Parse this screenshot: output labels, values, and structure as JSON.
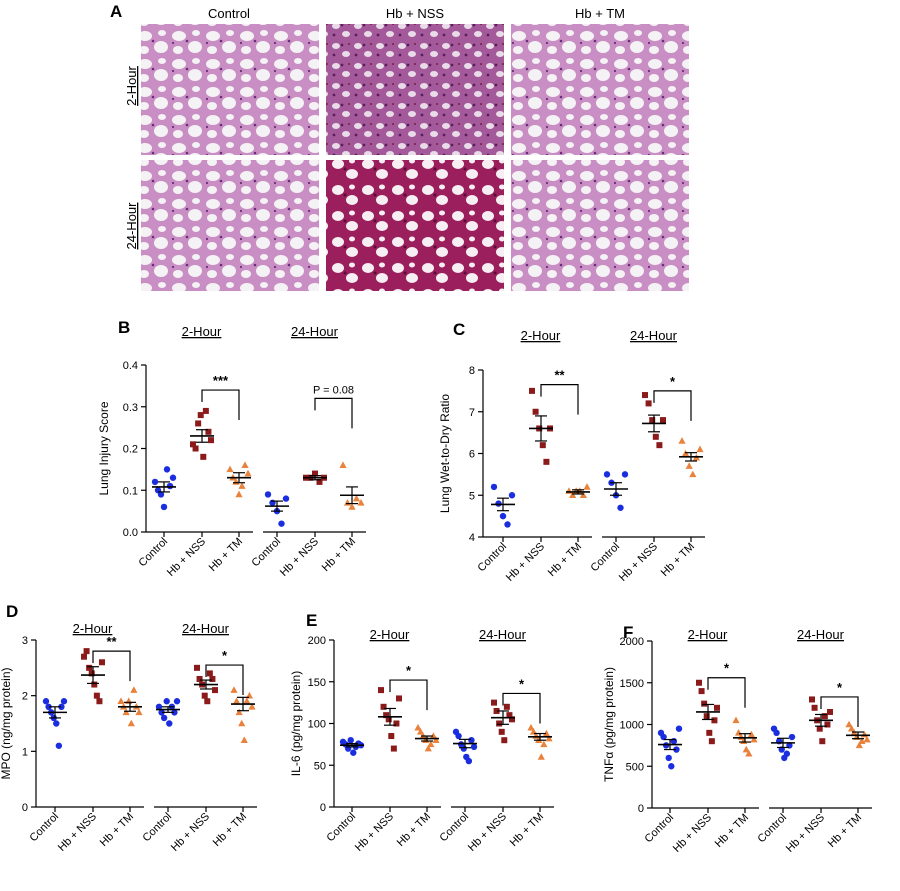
{
  "colors": {
    "control": "#1a2ee0",
    "nss": "#8b1a1a",
    "tm": "#e8823c",
    "tissue_light": "#c98fc4",
    "tissue_dark": "#8a2a6a",
    "tissue_hemorrhage": "#9a1f5c",
    "background_slide": "#f4f2f4"
  },
  "histology": {
    "panel_label": "A",
    "columns": [
      "Control",
      "Hb + NSS",
      "Hb + TM"
    ],
    "rows": [
      "2-Hour",
      "24-Hour"
    ]
  },
  "chart_data": [
    {
      "id": "B",
      "panel_label": "B",
      "type": "scatter",
      "ylabel": "Lung  Injury Score",
      "ylim": [
        0,
        0.4
      ],
      "yticks": [
        "0.0",
        "0.1",
        "0.2",
        "0.3",
        "0.4"
      ],
      "ytick_values": [
        0,
        0.1,
        0.2,
        0.3,
        0.4
      ],
      "groups": [
        {
          "label": "2-Hour",
          "categories": [
            "Control",
            "Hb + NSS",
            "Hb + TM"
          ],
          "points": [
            [
              0.12,
              0.1,
              0.09,
              0.06,
              0.15,
              0.11,
              0.13
            ],
            [
              0.21,
              0.2,
              0.26,
              0.28,
              0.18,
              0.29,
              0.24,
              0.22
            ],
            [
              0.15,
              0.13,
              0.12,
              0.09,
              0.11,
              0.16,
              0.14
            ]
          ],
          "means": [
            0.108,
            0.23,
            0.13
          ],
          "sems": [
            0.012,
            0.015,
            0.012
          ],
          "annotation": {
            "text": "***",
            "from": 1,
            "to": 2,
            "y": 0.34
          }
        },
        {
          "label": "24-Hour",
          "categories": [
            "Control",
            "Hb + NSS",
            "Hb + TM"
          ],
          "points": [
            [
              0.09,
              0.07,
              0.05,
              0.02,
              0.08
            ],
            [
              0.13,
              0.13,
              0.14,
              0.12,
              0.13
            ],
            [
              0.16,
              0.07,
              0.06,
              0.08,
              0.07
            ]
          ],
          "means": [
            0.062,
            0.13,
            0.088
          ],
          "sems": [
            0.012,
            0.005,
            0.02
          ],
          "annotation": {
            "text": "P = 0.08",
            "from": 1,
            "to": 2,
            "y": 0.32
          }
        }
      ]
    },
    {
      "id": "C",
      "panel_label": "C",
      "type": "scatter",
      "ylabel": "Lung Wet-to-Dry  Ratio",
      "ylim": [
        4,
        8
      ],
      "yticks": [
        "4",
        "5",
        "6",
        "7",
        "8"
      ],
      "ytick_values": [
        4,
        5,
        6,
        7,
        8
      ],
      "groups": [
        {
          "label": "2-Hour",
          "categories": [
            "Control",
            "Hb + NSS",
            "Hb + TM"
          ],
          "points": [
            [
              5.2,
              4.8,
              4.5,
              4.3,
              5.0
            ],
            [
              7.5,
              7.0,
              6.6,
              6.2,
              5.8,
              6.6
            ],
            [
              5.1,
              5.0,
              5.1,
              5.1,
              5.0,
              5.2
            ]
          ],
          "means": [
            4.78,
            6.6,
            5.08
          ],
          "sems": [
            0.15,
            0.3,
            0.05
          ],
          "annotation": {
            "text": "**",
            "from": 1,
            "to": 2,
            "y": 7.65
          }
        },
        {
          "label": "24-Hour",
          "categories": [
            "Control",
            "Hb + NSS",
            "Hb + TM"
          ],
          "points": [
            [
              5.5,
              5.3,
              5.0,
              4.7,
              5.5
            ],
            [
              7.4,
              7.2,
              6.8,
              6.4,
              6.2,
              6.8
            ],
            [
              6.3,
              6.0,
              5.7,
              5.5,
              5.9,
              6.1
            ]
          ],
          "means": [
            5.15,
            6.72,
            5.92
          ],
          "sems": [
            0.15,
            0.2,
            0.1
          ],
          "annotation": {
            "text": "*",
            "from": 1,
            "to": 2,
            "y": 7.5
          }
        }
      ]
    },
    {
      "id": "D",
      "panel_label": "D",
      "type": "scatter",
      "ylabel": "MPO (ng/mg protein)",
      "ylim": [
        0,
        3
      ],
      "yticks": [
        "0",
        "1",
        "2",
        "3"
      ],
      "ytick_values": [
        0,
        1,
        2,
        3
      ],
      "groups": [
        {
          "label": "2-Hour",
          "categories": [
            "Control",
            "Hb + NSS",
            "Hb + TM"
          ],
          "points": [
            [
              1.9,
              1.8,
              1.7,
              1.6,
              1.5,
              1.1,
              1.8,
              1.9
            ],
            [
              2.7,
              2.8,
              2.5,
              2.4,
              2.2,
              2.0,
              1.9,
              2.6
            ],
            [
              1.9,
              1.8,
              1.7,
              1.9,
              1.5,
              2.1,
              1.8,
              1.7
            ]
          ],
          "means": [
            1.7,
            2.37,
            1.8
          ],
          "sems": [
            0.1,
            0.15,
            0.08
          ],
          "annotation": {
            "text": "**",
            "from": 1,
            "to": 2,
            "y": 2.8
          }
        },
        {
          "label": "24-Hour",
          "categories": [
            "Control",
            "Hb + NSS",
            "Hb + TM"
          ],
          "points": [
            [
              1.8,
              1.7,
              1.6,
              1.9,
              1.5,
              1.8,
              1.7,
              1.9
            ],
            [
              2.5,
              2.3,
              2.2,
              2.0,
              1.9,
              2.4,
              2.3,
              2.1
            ],
            [
              2.1,
              1.9,
              1.7,
              1.5,
              1.2,
              1.9,
              2.0,
              1.8
            ]
          ],
          "means": [
            1.75,
            2.2,
            1.85
          ],
          "sems": [
            0.05,
            0.08,
            0.12
          ],
          "annotation": {
            "text": "*",
            "from": 1,
            "to": 2,
            "y": 2.55
          }
        }
      ]
    },
    {
      "id": "E",
      "panel_label": "E",
      "type": "scatter",
      "ylabel": "IL-6 (pg/mg protein)",
      "ylim": [
        0,
        200
      ],
      "yticks": [
        "0",
        "50",
        "100",
        "150",
        "200"
      ],
      "ytick_values": [
        0,
        50,
        100,
        150,
        200
      ],
      "groups": [
        {
          "label": "2-Hour",
          "categories": [
            "Control",
            "Hb + NSS",
            "Hb + TM"
          ],
          "points": [
            [
              78,
              75,
              70,
              80,
              65,
              72,
              76,
              74
            ],
            [
              140,
              120,
              110,
              105,
              85,
              70,
              100,
              130
            ],
            [
              95,
              90,
              85,
              80,
              70,
              75,
              85,
              80
            ]
          ],
          "means": [
            74,
            108,
            82
          ],
          "sems": [
            2,
            10,
            3
          ],
          "annotation": {
            "text": "*",
            "from": 1,
            "to": 2,
            "y": 152
          }
        },
        {
          "label": "24-Hour",
          "categories": [
            "Control",
            "Hb + NSS",
            "Hb + TM"
          ],
          "points": [
            [
              90,
              85,
              75,
              70,
              60,
              55,
              80,
              72
            ],
            [
              125,
              115,
              100,
              90,
              80,
              120,
              110,
              105
            ],
            [
              95,
              90,
              85,
              80,
              60,
              75,
              88,
              82
            ]
          ],
          "means": [
            76,
            107,
            84
          ],
          "sems": [
            5,
            8,
            4
          ],
          "annotation": {
            "text": "*",
            "from": 1,
            "to": 2,
            "y": 136
          }
        }
      ]
    },
    {
      "id": "F",
      "panel_label": "F",
      "type": "scatter",
      "ylabel": "TNFα (pg/mg protein)",
      "ylim": [
        0,
        2000
      ],
      "yticks": [
        "0",
        "500",
        "1000",
        "1500",
        "2000"
      ],
      "ytick_values": [
        0,
        500,
        1000,
        1500,
        2000
      ],
      "groups": [
        {
          "label": "2-Hour",
          "categories": [
            "Control",
            "Hb + NSS",
            "Hb + TM"
          ],
          "points": [
            [
              900,
              850,
              750,
              600,
              500,
              800,
              700,
              950
            ],
            [
              1500,
              1400,
              1250,
              1100,
              900,
              800,
              1050,
              1200
            ],
            [
              1050,
              900,
              850,
              800,
              700,
              650,
              880,
              820
            ]
          ],
          "means": [
            760,
            1150,
            840
          ],
          "sems": [
            60,
            90,
            50
          ],
          "annotation": {
            "text": "*",
            "from": 1,
            "to": 2,
            "y": 1560
          }
        },
        {
          "label": "24-Hour",
          "categories": [
            "Control",
            "Hb + NSS",
            "Hb + TM"
          ],
          "points": [
            [
              950,
              900,
              800,
              700,
              600,
              650,
              750,
              850
            ],
            [
              1300,
              1200,
              1050,
              950,
              800,
              1100,
              1000,
              1150
            ],
            [
              1000,
              950,
              900,
              850,
              750,
              800,
              880,
              820
            ]
          ],
          "means": [
            780,
            1050,
            870
          ],
          "sems": [
            55,
            70,
            40
          ],
          "annotation": {
            "text": "*",
            "from": 1,
            "to": 2,
            "y": 1330
          }
        }
      ]
    }
  ]
}
